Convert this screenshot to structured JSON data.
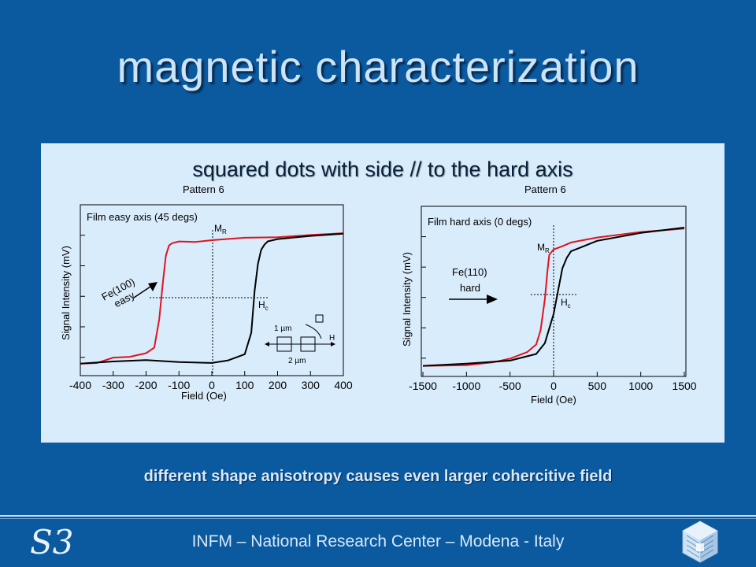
{
  "title": "magnetic characterization",
  "subtitle": "squared dots with side // to the hard axis",
  "caption": "different shape anisotropy causes even larger cohercitive field",
  "footer": "INFM – National Research Center – Modena - Italy",
  "logo_left": "S3",
  "colors": {
    "background": "#0b5aa0",
    "panel": "#d9ecfb",
    "red": "#e0141e",
    "black": "#000000"
  },
  "chart_data": [
    {
      "type": "line",
      "title": "Pattern 6",
      "subtitle": "Film easy axis (45 degs)",
      "xlabel": "Field (Oe)",
      "ylabel": "Signal Intensity (mV)",
      "xlim": [
        -400,
        400
      ],
      "xticks": [
        -400,
        -300,
        -200,
        -100,
        0,
        100,
        200,
        300,
        400
      ],
      "ylim": [
        0,
        1
      ],
      "annotations": {
        "mr": "M",
        "mr_sub": "R",
        "hc": "H",
        "hc_sub": "c",
        "dir_line1": "Fe(100)",
        "dir_line2": "easy",
        "schema_1": "1 µm",
        "schema_2": "2 µm",
        "schema_h": "H"
      },
      "series": [
        {
          "color": "#e0141e",
          "x": [
            -400,
            -350,
            -300,
            -250,
            -200,
            -175,
            -160,
            -150,
            -140,
            -130,
            -120,
            -100,
            -50,
            0,
            100,
            200,
            300,
            400
          ],
          "y": [
            0.03,
            0.04,
            0.08,
            0.08,
            0.1,
            0.14,
            0.35,
            0.6,
            0.82,
            0.89,
            0.9,
            0.91,
            0.91,
            0.93,
            0.95,
            0.95,
            0.96,
            0.97
          ]
        },
        {
          "color": "#000000",
          "x": [
            -400,
            -300,
            -200,
            -100,
            0,
            50,
            100,
            120,
            130,
            140,
            150,
            160,
            170,
            200,
            300,
            400
          ],
          "y": [
            0.03,
            0.04,
            0.05,
            0.04,
            0.04,
            0.06,
            0.1,
            0.25,
            0.55,
            0.75,
            0.86,
            0.9,
            0.92,
            0.93,
            0.95,
            0.97
          ]
        }
      ]
    },
    {
      "type": "line",
      "title": "Pattern 6",
      "subtitle": "Film hard axis (0 degs)",
      "xlabel": "Field (Oe)",
      "ylabel": "Signal Intensity (mV)",
      "xlim": [
        -1500,
        1500
      ],
      "xticks": [
        -1500,
        -1000,
        -500,
        0,
        500,
        1000,
        1500
      ],
      "ylim": [
        0,
        1
      ],
      "annotations": {
        "mr": "M",
        "mr_sub": "R",
        "hc": "H",
        "hc_sub": "c",
        "dir_line1": "Fe(110)",
        "dir_line2": "hard"
      },
      "series": [
        {
          "color": "#e0141e",
          "x": [
            -1500,
            -1000,
            -700,
            -500,
            -300,
            -200,
            -150,
            -100,
            -70,
            -50,
            0,
            100,
            200,
            500,
            1000,
            1500
          ],
          "y": [
            0.04,
            0.05,
            0.07,
            0.09,
            0.13,
            0.18,
            0.28,
            0.5,
            0.7,
            0.8,
            0.83,
            0.85,
            0.88,
            0.92,
            0.96,
            0.98
          ]
        },
        {
          "color": "#000000",
          "x": [
            -1500,
            -1000,
            -500,
            -200,
            -100,
            0,
            50,
            100,
            150,
            200,
            300,
            500,
            1000,
            1500
          ],
          "y": [
            0.04,
            0.05,
            0.07,
            0.12,
            0.2,
            0.4,
            0.55,
            0.7,
            0.77,
            0.82,
            0.85,
            0.9,
            0.95,
            0.98
          ]
        }
      ]
    }
  ]
}
